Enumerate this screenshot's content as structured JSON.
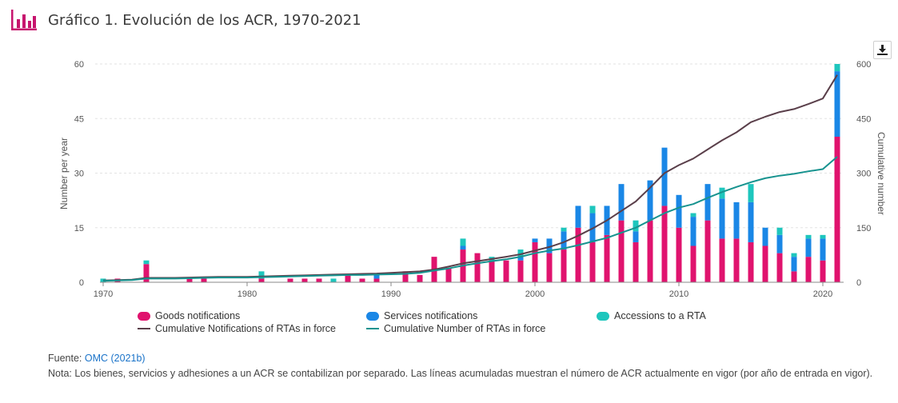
{
  "header": {
    "title": "Gráfico 1. Evolución de los ACR, 1970-2021",
    "icon": "bar-chart-icon",
    "icon_color": "#c7156e"
  },
  "toolbar": {
    "download_icon": "download-icon"
  },
  "colors": {
    "goods": "#e0136e",
    "services": "#1a87e6",
    "accessions": "#1ec6bd",
    "cum_notifications": "#5a3f4a",
    "cum_rtas": "#17938f"
  },
  "chart_data": {
    "type": "bar",
    "stacked": true,
    "xlim": [
      1970,
      2021
    ],
    "x_ticks": [
      "1970",
      "1980",
      "1990",
      "2000",
      "2010",
      "2020"
    ],
    "ylabel": "Number per year",
    "ylim": [
      0,
      60
    ],
    "y_ticks": [
      "0",
      "15",
      "30",
      "45",
      "60"
    ],
    "y2label": "Cumulative number",
    "y2lim": [
      0,
      600
    ],
    "y2_ticks": [
      "0",
      "150",
      "300",
      "450",
      "600"
    ],
    "grid": true,
    "legend_position": "bottom",
    "x": [
      1970,
      1971,
      1972,
      1973,
      1974,
      1975,
      1976,
      1977,
      1978,
      1979,
      1980,
      1981,
      1982,
      1983,
      1984,
      1985,
      1986,
      1987,
      1988,
      1989,
      1990,
      1991,
      1992,
      1993,
      1994,
      1995,
      1996,
      1997,
      1998,
      1999,
      2000,
      2001,
      2002,
      2003,
      2004,
      2005,
      2006,
      2007,
      2008,
      2009,
      2010,
      2011,
      2012,
      2013,
      2014,
      2015,
      2016,
      2017,
      2018,
      2019,
      2020,
      2021
    ],
    "series": [
      {
        "name": "Goods notifications",
        "kind": "bar",
        "values": [
          0,
          1,
          0,
          5,
          0,
          0,
          1,
          1,
          0,
          0,
          0,
          1,
          0,
          1,
          1,
          1,
          0,
          2,
          1,
          1,
          0,
          3,
          2,
          7,
          4,
          9,
          8,
          6,
          6,
          6,
          11,
          8,
          9,
          15,
          11,
          13,
          17,
          11,
          17,
          21,
          15,
          10,
          17,
          12,
          12,
          11,
          10,
          8,
          3,
          7,
          6,
          40
        ]
      },
      {
        "name": "Services notifications",
        "kind": "bar",
        "values": [
          0,
          0,
          0,
          0,
          0,
          0,
          0,
          0,
          0,
          0,
          0,
          0,
          0,
          0,
          0,
          0,
          0,
          0,
          0,
          1,
          0,
          0,
          0,
          0,
          0,
          1,
          0,
          0,
          0,
          1,
          1,
          4,
          5,
          6,
          8,
          8,
          10,
          3,
          11,
          16,
          9,
          8,
          10,
          11,
          10,
          11,
          5,
          5,
          4,
          5,
          6,
          18
        ]
      },
      {
        "name": "Accessions to a RTA",
        "kind": "bar",
        "values": [
          1,
          0,
          0,
          1,
          0,
          0,
          0,
          0,
          0,
          0,
          0,
          2,
          0,
          0,
          0,
          0,
          1,
          0,
          0,
          0,
          0,
          0,
          0,
          0,
          0,
          2,
          0,
          1,
          0,
          2,
          0,
          0,
          1,
          0,
          2,
          0,
          0,
          3,
          0,
          0,
          0,
          1,
          0,
          3,
          0,
          5,
          0,
          2,
          1,
          1,
          1,
          2
        ]
      },
      {
        "name": "Cumulative Notifications of RTAs in force",
        "kind": "line",
        "axis": "right",
        "values": [
          5,
          6,
          7,
          12,
          12,
          12,
          13,
          14,
          15,
          15,
          15,
          16,
          17,
          18,
          19,
          20,
          21,
          22,
          23,
          24,
          26,
          28,
          30,
          35,
          43,
          52,
          58,
          64,
          70,
          77,
          87,
          97,
          110,
          128,
          148,
          170,
          196,
          222,
          260,
          300,
          322,
          340,
          365,
          390,
          412,
          440,
          455,
          468,
          476,
          490,
          505,
          570
        ]
      },
      {
        "name": "Cumulative Number of RTAs in force",
        "kind": "line",
        "axis": "right",
        "values": [
          4,
          5,
          6,
          10,
          10,
          10,
          11,
          12,
          13,
          13,
          13,
          14,
          15,
          16,
          17,
          18,
          19,
          20,
          20,
          21,
          22,
          23,
          26,
          32,
          38,
          46,
          52,
          58,
          63,
          70,
          80,
          87,
          93,
          102,
          112,
          122,
          136,
          150,
          170,
          190,
          205,
          215,
          232,
          248,
          262,
          275,
          286,
          293,
          298,
          305,
          311,
          345
        ]
      }
    ]
  },
  "legend": {
    "goods": "Goods notifications",
    "services": "Services notifications",
    "accessions": "Accessions to a RTA",
    "cum_notifications": "Cumulative Notifications of RTAs in force",
    "cum_rtas": "Cumulative Number of RTAs in force"
  },
  "footer": {
    "source_label": "Fuente:",
    "source_link": "OMC (2021b)",
    "note": "Nota: Los bienes, servicios y adhesiones a un ACR se contabilizan por separado. Las líneas acumuladas muestran el número de ACR actualmente en vigor (por año de entrada en vigor)."
  }
}
